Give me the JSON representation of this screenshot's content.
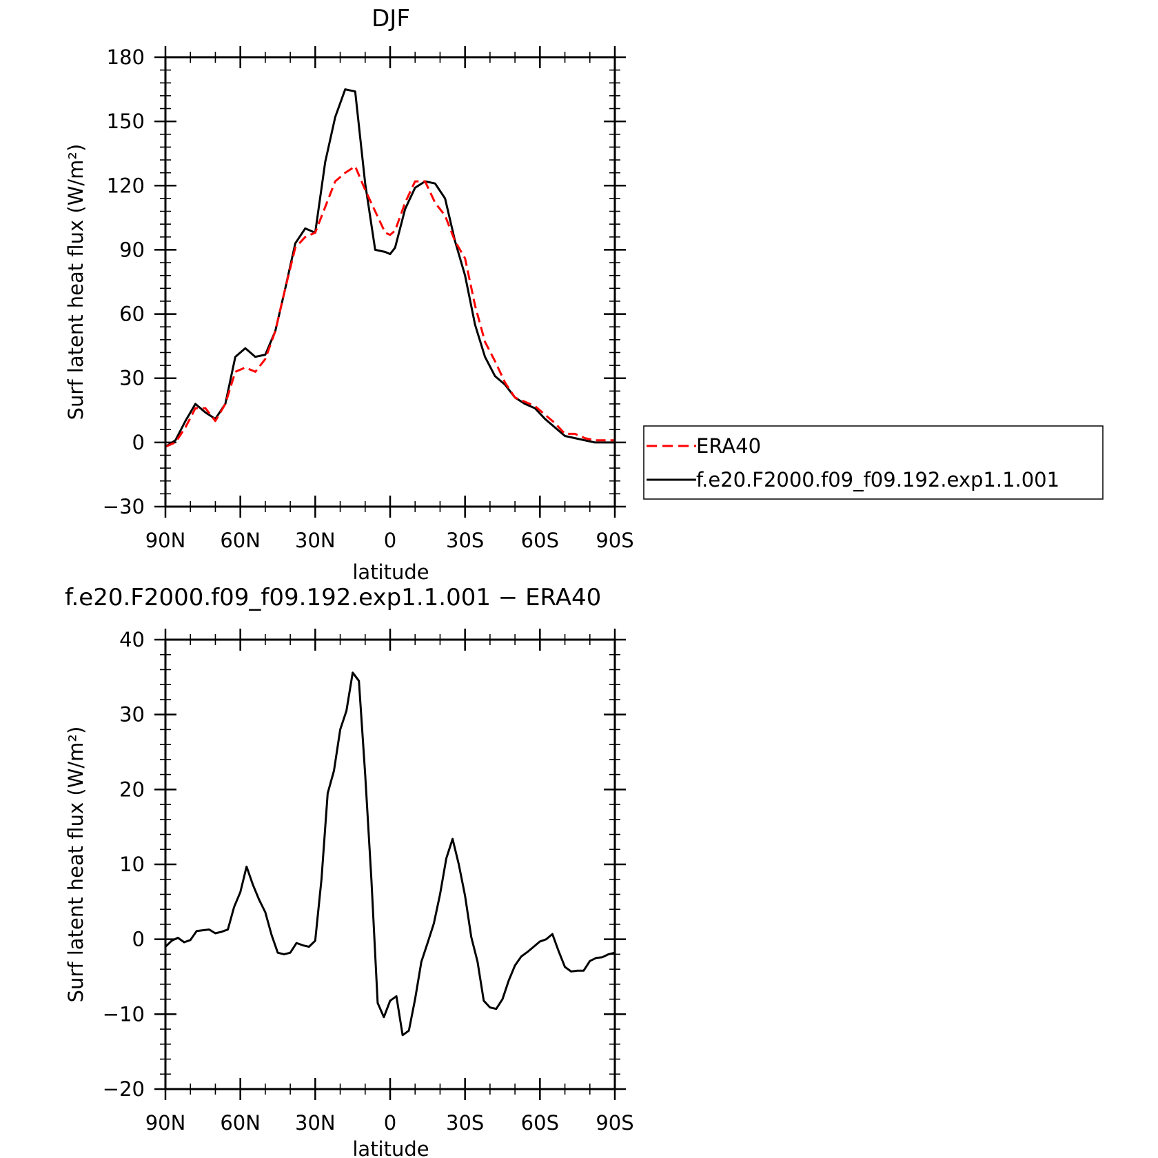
{
  "chart_data": [
    {
      "type": "line",
      "title": "DJF",
      "xlabel": "latitude",
      "ylabel": "Surf latent heat flux (W/m²)",
      "xlim": [
        90,
        -90
      ],
      "ylim": [
        -30,
        180
      ],
      "yticks": [
        -30,
        0,
        30,
        60,
        90,
        120,
        150,
        180
      ],
      "xticks": [
        90,
        60,
        30,
        0,
        -30,
        -60,
        -90
      ],
      "xticklabels": [
        "90N",
        "60N",
        "30N",
        "0",
        "30S",
        "60S",
        "90S"
      ],
      "legend": "right",
      "series": [
        {
          "name": "ERA40",
          "color": "#ff0000",
          "style": "dashed",
          "x": [
            90,
            86,
            82,
            78,
            74,
            70,
            66,
            62,
            58,
            54,
            50,
            46,
            42,
            38,
            34,
            30,
            26,
            22,
            18,
            14,
            10,
            6,
            2,
            0,
            -2,
            -6,
            -10,
            -14,
            -18,
            -22,
            -26,
            -30,
            -34,
            -38,
            -42,
            -46,
            -50,
            -54,
            -58,
            -62,
            -66,
            -70,
            -74,
            -78,
            -82,
            -86,
            -90
          ],
          "y": [
            -2,
            0,
            7,
            16,
            16,
            10,
            18,
            33,
            35,
            33,
            39,
            52,
            72,
            91,
            96,
            98,
            110,
            122,
            126,
            129,
            118,
            108,
            98,
            97,
            99,
            112,
            122,
            122,
            112,
            106,
            94,
            86,
            64,
            47,
            38,
            28,
            21,
            19,
            17,
            13,
            9,
            4,
            4,
            2,
            1,
            1,
            1
          ]
        },
        {
          "name": "f.e20.F2000.f09_f09.192.exp1.1.001",
          "color": "#000000",
          "style": "solid",
          "x": [
            90,
            86,
            82,
            78,
            74,
            70,
            66,
            62,
            58,
            54,
            50,
            46,
            42,
            38,
            34,
            30,
            26,
            22,
            18,
            14,
            10,
            6,
            2,
            0,
            -2,
            -6,
            -10,
            -14,
            -18,
            -22,
            -26,
            -30,
            -34,
            -38,
            -42,
            -46,
            -50,
            -54,
            -58,
            -62,
            -66,
            -70,
            -74,
            -78,
            -82,
            -86,
            -90
          ],
          "y": [
            -2,
            1,
            10,
            18,
            14,
            11,
            18,
            40,
            44,
            40,
            41,
            52,
            72,
            93,
            100,
            98,
            131,
            152,
            165,
            164,
            121,
            90,
            89,
            88,
            91,
            109,
            119,
            122,
            121,
            114,
            94,
            78,
            55,
            40,
            31,
            27,
            21,
            18,
            16,
            11,
            7,
            3,
            2,
            1,
            0,
            0,
            0
          ]
        }
      ]
    },
    {
      "type": "line",
      "title": "f.e20.F2000.f09_f09.192.exp1.1.001 − ERA40",
      "xlabel": "latitude",
      "ylabel": "Surf latent heat flux (W/m²)",
      "xlim": [
        90,
        -90
      ],
      "ylim": [
        -20,
        40
      ],
      "yticks": [
        -20,
        -10,
        0,
        10,
        20,
        30,
        40
      ],
      "xticks": [
        90,
        60,
        30,
        0,
        -30,
        -60,
        -90
      ],
      "xticklabels": [
        "90N",
        "60N",
        "30N",
        "0",
        "30S",
        "60S",
        "90S"
      ],
      "series": [
        {
          "color": "#000000",
          "style": "solid",
          "x": [
            90,
            87.5,
            85,
            82.5,
            80,
            77.5,
            75,
            72.5,
            70,
            67.5,
            65,
            62.5,
            60,
            57.5,
            55,
            52.5,
            50,
            47.5,
            45,
            42.5,
            40,
            37.5,
            35,
            32.5,
            30,
            27.5,
            25,
            22.5,
            20,
            17.5,
            15,
            12.5,
            10,
            7.5,
            5,
            2.5,
            0,
            -2.5,
            -5,
            -7.5,
            -10,
            -12.5,
            -15,
            -17.5,
            -20,
            -22.5,
            -25,
            -27.5,
            -30,
            -32.5,
            -35,
            -37.5,
            -40,
            -42.5,
            -45,
            -47.5,
            -50,
            -52.5,
            -55,
            -57.5,
            -60,
            -62.5,
            -65,
            -67.5,
            -70,
            -72.5,
            -75,
            -77.5,
            -80,
            -82.5,
            -85,
            -87.5,
            -90
          ],
          "y": [
            -1,
            -0.2,
            0.2,
            -0.4,
            -0.1,
            1.1,
            1.2,
            1.3,
            0.8,
            1.0,
            1.3,
            4.3,
            6.3,
            9.7,
            7.3,
            5.3,
            3.6,
            0.6,
            -1.8,
            -2.0,
            -1.8,
            -0.5,
            -0.8,
            -1.0,
            -0.2,
            8.0,
            19.5,
            22.5,
            28.0,
            30.5,
            35.6,
            34.5,
            22.0,
            8.0,
            -8.5,
            -10.4,
            -8.2,
            -7.6,
            -12.8,
            -12.2,
            -8.0,
            -3.0,
            -0.5,
            2.1,
            6.0,
            10.8,
            13.4,
            10.0,
            5.8,
            0.3,
            -3.0,
            -8.2,
            -9.1,
            -9.3,
            -8.0,
            -5.5,
            -3.5,
            -2.3,
            -1.7,
            -1.0,
            -0.3,
            0.0,
            0.7,
            -1.6,
            -3.7,
            -4.3,
            -4.2,
            -4.2,
            -2.9,
            -2.5,
            -2.4,
            -2.0,
            -1.8
          ]
        }
      ]
    }
  ]
}
